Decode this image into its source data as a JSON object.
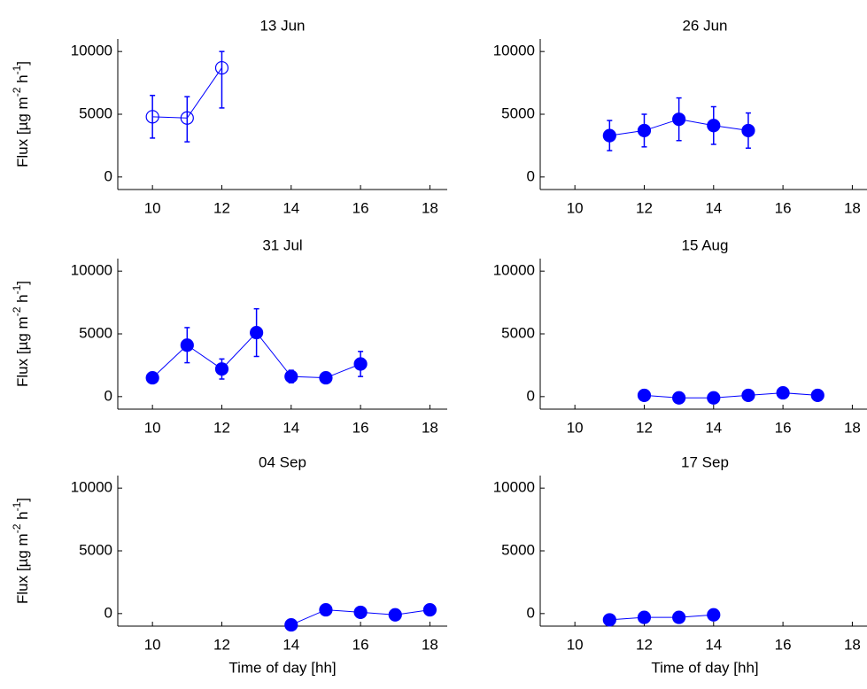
{
  "chart_data": [
    {
      "type": "errorbar",
      "title": "13 Jun",
      "ylabel_parts": [
        "Flux [µg m",
        "-2",
        " h",
        "-1",
        "]"
      ],
      "x": [
        10,
        11,
        12
      ],
      "values": [
        4800,
        4700,
        8700
      ],
      "errors_lower": [
        1700,
        1900,
        3200
      ],
      "errors_upper": [
        1700,
        1700,
        1300
      ],
      "color": "#0000ff",
      "marker_filled": false,
      "xlim": [
        9,
        18.5
      ],
      "ylim": [
        -1000,
        11000
      ],
      "xticks": [
        10,
        12,
        14,
        16,
        18
      ],
      "yticks": [
        0,
        5000,
        10000
      ]
    },
    {
      "type": "errorbar",
      "title": "26 Jun",
      "x": [
        11,
        12,
        13,
        14,
        15
      ],
      "values": [
        3300,
        3700,
        4600,
        4100,
        3700
      ],
      "errors_lower": [
        1200,
        1300,
        1700,
        1500,
        1400
      ],
      "errors_upper": [
        1200,
        1300,
        1700,
        1500,
        1400
      ],
      "color": "#0000ff",
      "marker_filled": true,
      "xlim": [
        9,
        18.5
      ],
      "ylim": [
        -1000,
        11000
      ],
      "xticks": [
        10,
        12,
        14,
        16,
        18
      ],
      "yticks": [
        0,
        5000,
        10000
      ]
    },
    {
      "type": "errorbar",
      "title": "31 Jul",
      "ylabel_parts": [
        "Flux [µg m",
        "-2",
        " h",
        "-1",
        "]"
      ],
      "x": [
        10,
        11,
        12,
        13,
        14,
        15,
        16
      ],
      "values": [
        1500,
        4100,
        2200,
        5100,
        1600,
        1500,
        2600
      ],
      "errors_lower": [
        300,
        1400,
        800,
        1900,
        500,
        200,
        1000
      ],
      "errors_upper": [
        300,
        1400,
        800,
        1900,
        500,
        200,
        1000
      ],
      "color": "#0000ff",
      "marker_filled": true,
      "xlim": [
        9,
        18.5
      ],
      "ylim": [
        -1000,
        11000
      ],
      "xticks": [
        10,
        12,
        14,
        16,
        18
      ],
      "yticks": [
        0,
        5000,
        10000
      ]
    },
    {
      "type": "errorbar",
      "title": "15 Aug",
      "x": [
        12,
        13,
        14,
        15,
        16,
        17
      ],
      "values": [
        100,
        -100,
        -100,
        100,
        300,
        100
      ],
      "errors_lower": [
        100,
        100,
        100,
        100,
        100,
        100
      ],
      "errors_upper": [
        100,
        100,
        100,
        100,
        100,
        100
      ],
      "color": "#0000ff",
      "marker_filled": true,
      "xlim": [
        9,
        18.5
      ],
      "ylim": [
        -1000,
        11000
      ],
      "xticks": [
        10,
        12,
        14,
        16,
        18
      ],
      "yticks": [
        0,
        5000,
        10000
      ]
    },
    {
      "type": "errorbar",
      "title": "04 Sep",
      "ylabel_parts": [
        "Flux [µg m",
        "-2",
        " h",
        "-1",
        "]"
      ],
      "xlabel": "Time of day [hh]",
      "x": [
        14,
        15,
        16,
        17,
        18
      ],
      "values": [
        -900,
        300,
        100,
        -100,
        300
      ],
      "errors_lower": [
        100,
        100,
        100,
        100,
        100
      ],
      "errors_upper": [
        100,
        100,
        100,
        100,
        100
      ],
      "color": "#0000ff",
      "marker_filled": true,
      "xlim": [
        9,
        18.5
      ],
      "ylim": [
        -1000,
        11000
      ],
      "xticks": [
        10,
        12,
        14,
        16,
        18
      ],
      "yticks": [
        0,
        5000,
        10000
      ]
    },
    {
      "type": "errorbar",
      "title": "17 Sep",
      "xlabel": "Time of day [hh]",
      "x": [
        11,
        12,
        13,
        14
      ],
      "values": [
        -500,
        -300,
        -300,
        -100
      ],
      "errors_lower": [
        100,
        100,
        100,
        100
      ],
      "errors_upper": [
        100,
        100,
        100,
        100
      ],
      "color": "#0000ff",
      "marker_filled": true,
      "xlim": [
        9,
        18.5
      ],
      "ylim": [
        -1000,
        11000
      ],
      "xticks": [
        10,
        12,
        14,
        16,
        18
      ],
      "yticks": [
        0,
        5000,
        10000
      ]
    }
  ]
}
